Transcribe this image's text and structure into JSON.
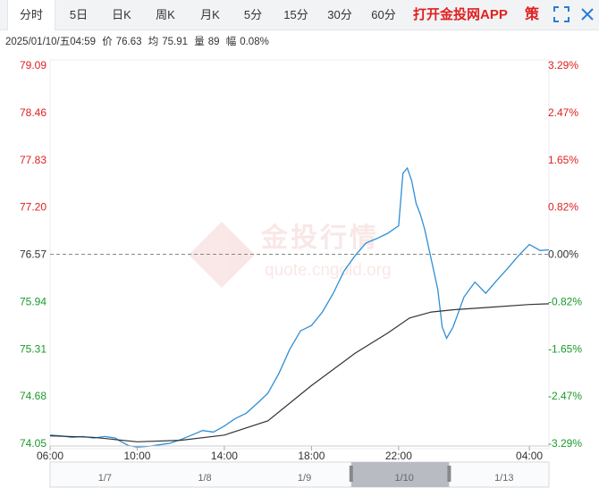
{
  "tabs": [
    {
      "label": "分时",
      "active": true
    },
    {
      "label": "5日"
    },
    {
      "label": "日K"
    },
    {
      "label": "周K"
    },
    {
      "label": "月K"
    },
    {
      "label": "5分"
    },
    {
      "label": "15分"
    },
    {
      "label": "30分"
    },
    {
      "label": "60分"
    }
  ],
  "app_link": "打开金投网APP",
  "strategy_label": "策",
  "icons": {
    "fullscreen": "fullscreen-icon",
    "close": "close-icon"
  },
  "info": {
    "datetime": "2025/01/10/五04:59",
    "price_label": "价",
    "price": "76.63",
    "avg_label": "均",
    "avg": "75.91",
    "volume_label": "量",
    "volume": "89",
    "change_label": "幅",
    "change": "0.08%"
  },
  "watermark": {
    "brand": "金投行情",
    "url": "quote.cngold.org"
  },
  "colors": {
    "price_line": "#2f8fd6",
    "avg_line": "#333333",
    "up": "#e02020",
    "down": "#1a9a2a",
    "ref": "#888888",
    "watermark": "#f5d5d5"
  },
  "chart_data": {
    "type": "line",
    "ylim": [
      74.05,
      79.09
    ],
    "prev_close": 76.57,
    "y_ticks": [
      "79.09",
      "78.46",
      "77.83",
      "77.20",
      "76.57",
      "75.94",
      "75.31",
      "74.68",
      "74.05"
    ],
    "pct_ticks": [
      "3.29%",
      "2.47%",
      "1.65%",
      "0.82%",
      "0.00%",
      "-0.82%",
      "-1.65%",
      "-2.47%",
      "-3.29%"
    ],
    "x_ticks": [
      "06:00",
      "10:00",
      "14:00",
      "18:00",
      "22:00",
      "04:00"
    ],
    "x_tick_hours": [
      0,
      4,
      8,
      12,
      16,
      22
    ],
    "x_range_hours": [
      0,
      22.9
    ],
    "series": [
      {
        "key": "price",
        "points": [
          [
            0,
            74.16
          ],
          [
            0.5,
            74.15
          ],
          [
            1,
            74.13
          ],
          [
            1.5,
            74.14
          ],
          [
            2,
            74.12
          ],
          [
            2.5,
            74.14
          ],
          [
            3,
            74.12
          ],
          [
            3.2,
            74.08
          ],
          [
            3.6,
            74.02
          ],
          [
            4,
            74.0
          ],
          [
            4.5,
            74.01
          ],
          [
            5,
            74.03
          ],
          [
            5.5,
            74.05
          ],
          [
            6,
            74.1
          ],
          [
            6.5,
            74.16
          ],
          [
            7,
            74.22
          ],
          [
            7.5,
            74.2
          ],
          [
            8,
            74.28
          ],
          [
            8.5,
            74.38
          ],
          [
            9,
            74.45
          ],
          [
            9.5,
            74.58
          ],
          [
            10,
            74.72
          ],
          [
            10.5,
            74.98
          ],
          [
            11,
            75.3
          ],
          [
            11.5,
            75.55
          ],
          [
            12,
            75.62
          ],
          [
            12.5,
            75.8
          ],
          [
            13,
            76.05
          ],
          [
            13.5,
            76.35
          ],
          [
            14,
            76.55
          ],
          [
            14.5,
            76.72
          ],
          [
            15,
            76.78
          ],
          [
            15.5,
            76.85
          ],
          [
            16,
            76.95
          ],
          [
            16.2,
            77.65
          ],
          [
            16.4,
            77.72
          ],
          [
            16.6,
            77.55
          ],
          [
            16.8,
            77.25
          ],
          [
            17,
            77.1
          ],
          [
            17.2,
            76.9
          ],
          [
            17.5,
            76.5
          ],
          [
            17.8,
            76.1
          ],
          [
            18.0,
            75.6
          ],
          [
            18.2,
            75.45
          ],
          [
            18.5,
            75.6
          ],
          [
            19,
            76.0
          ],
          [
            19.5,
            76.2
          ],
          [
            20,
            76.05
          ],
          [
            20.5,
            76.22
          ],
          [
            21,
            76.38
          ],
          [
            21.5,
            76.55
          ],
          [
            22,
            76.7
          ],
          [
            22.5,
            76.62
          ],
          [
            22.9,
            76.63
          ]
        ]
      },
      {
        "key": "avg",
        "points": [
          [
            0,
            74.15
          ],
          [
            2,
            74.13
          ],
          [
            4,
            74.07
          ],
          [
            6,
            74.09
          ],
          [
            8,
            74.16
          ],
          [
            10,
            74.35
          ],
          [
            12,
            74.82
          ],
          [
            14,
            75.25
          ],
          [
            15.5,
            75.52
          ],
          [
            16.5,
            75.72
          ],
          [
            17.5,
            75.8
          ],
          [
            18.5,
            75.83
          ],
          [
            20,
            75.86
          ],
          [
            22,
            75.9
          ],
          [
            22.9,
            75.91
          ]
        ]
      }
    ]
  },
  "navigator": {
    "labels": [
      "1/7",
      "1/8",
      "1/9",
      "1/10",
      "1/13"
    ],
    "selected_index": 3
  }
}
